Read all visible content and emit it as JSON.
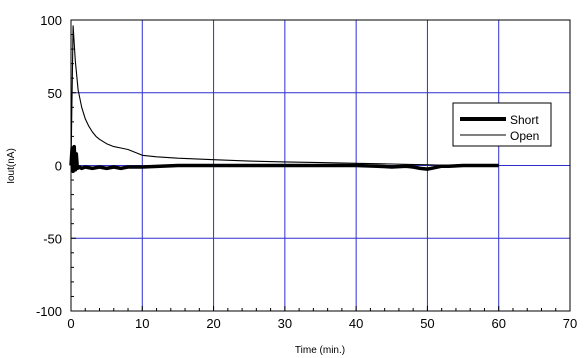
{
  "chart_data": {
    "type": "line",
    "title": "",
    "xlabel": "Time (min.)",
    "ylabel": "Iout(nA)",
    "xlim": [
      0,
      70
    ],
    "ylim": [
      -100,
      100
    ],
    "xticks": [
      0,
      10,
      20,
      30,
      40,
      50,
      60,
      70
    ],
    "yticks": [
      -100,
      -50,
      0,
      50,
      100
    ],
    "grid": true,
    "grid_color": "#2f2fd0",
    "legend_position": "right",
    "series": [
      {
        "name": "Short",
        "line_style": "thick",
        "color": "#000000",
        "x": [
          0,
          0.15,
          0.3,
          0.45,
          0.6,
          0.75,
          0.9,
          1.2,
          1.5,
          2,
          3,
          4,
          5,
          6,
          7,
          8,
          9,
          10,
          15,
          20,
          30,
          40,
          43,
          45,
          47,
          48,
          49,
          50,
          51,
          52,
          53,
          55,
          60
        ],
        "y": [
          0,
          12,
          -4,
          13,
          -3,
          8,
          -2,
          -1,
          -2,
          -1,
          -2,
          -1,
          -2,
          -1,
          -2,
          -1,
          -1,
          -1,
          0,
          0,
          0,
          0,
          -0.5,
          -1,
          -0.5,
          -1,
          -2,
          -2.5,
          -1.5,
          -0.5,
          -0.5,
          0,
          0
        ]
      },
      {
        "name": "Open",
        "line_style": "thin",
        "color": "#000000",
        "x": [
          0,
          0.3,
          0.6,
          1,
          1.5,
          2,
          2.5,
          3,
          3.5,
          4,
          5,
          6,
          7,
          8,
          9,
          10,
          12,
          15,
          20,
          25,
          30,
          35,
          40,
          45,
          50,
          52
        ],
        "y": [
          0,
          96,
          72,
          52,
          40,
          32,
          27,
          23,
          20,
          18,
          15,
          13,
          12,
          11,
          9,
          7,
          6,
          5,
          4,
          3,
          2.5,
          2,
          1.5,
          1,
          0.5,
          0.2
        ]
      }
    ]
  }
}
